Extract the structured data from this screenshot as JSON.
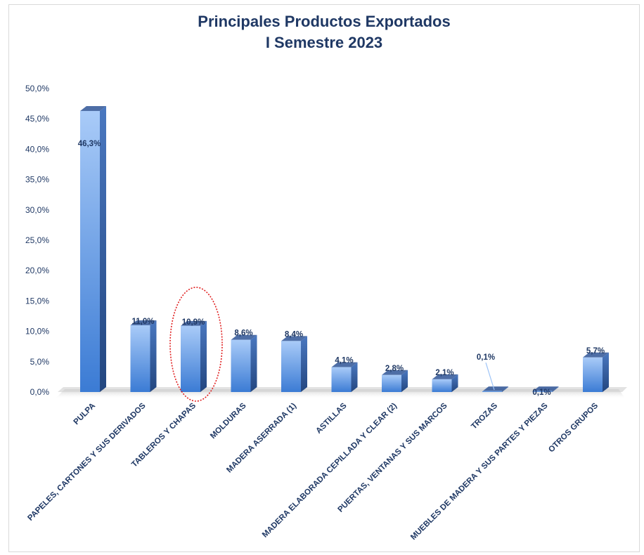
{
  "chart_data": {
    "type": "bar",
    "title": "Principales Productos Exportados",
    "subtitle": "I Semestre 2023",
    "categories": [
      "PULPA",
      "PAPELES, CARTONES Y SUS DERIVADOS",
      "TABLEROS Y CHAPAS",
      "MOLDURAS",
      "MADERA ASERRADA (1)",
      "ASTILLAS",
      "MADERA ELABORADA CEPILLADA Y CLEAR (2)",
      "PUERTAS, VENTANAS Y SUS MARCOS",
      "TROZAS",
      "MUEBLES DE MADERA Y SUS PARTES Y PIEZAS",
      "OTROS GRUPOS"
    ],
    "values": [
      46.3,
      11.0,
      10.9,
      8.6,
      8.4,
      4.1,
      2.8,
      2.1,
      0.1,
      0.1,
      5.7
    ],
    "data_labels": [
      "46,3%",
      "11,0%",
      "10,9%",
      "8,6%",
      "8,4%",
      "4,1%",
      "2,8%",
      "2,1%",
      "0,1%",
      "0,1%",
      "5,7%"
    ],
    "yticks": [
      "0,0%",
      "5,0%",
      "10,0%",
      "15,0%",
      "20,0%",
      "25,0%",
      "30,0%",
      "35,0%",
      "40,0%",
      "45,0%",
      "50,0%"
    ],
    "ylim": [
      0,
      50
    ],
    "highlighted_category": "TABLEROS Y CHAPAS",
    "colors": {
      "title": "#1f3864",
      "bar_light": "#9dc3f7",
      "bar_dark": "#3a78cf",
      "side": "#2f5597",
      "top": "#b4d0f5",
      "highlight_circle": "#e02020"
    }
  }
}
